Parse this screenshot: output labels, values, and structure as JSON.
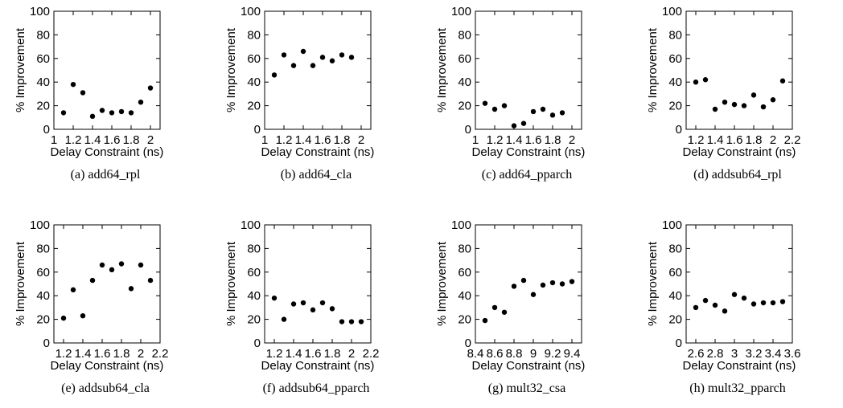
{
  "chart_data": [
    {
      "type": "scatter",
      "caption": "(a)  add64_rpl",
      "xlabel": "Delay Constraint (ns)",
      "ylabel": "% Improvement",
      "xlim": [
        1,
        2.1
      ],
      "ylim": [
        0,
        100
      ],
      "xticks": [
        1,
        1.2,
        1.4,
        1.6,
        1.8,
        2
      ],
      "yticks": [
        0,
        20,
        40,
        60,
        80,
        100
      ],
      "x": [
        1.1,
        1.2,
        1.3,
        1.4,
        1.5,
        1.6,
        1.7,
        1.8,
        1.9,
        2.0
      ],
      "y": [
        14,
        38,
        31,
        11,
        16,
        14,
        15,
        14,
        23,
        35
      ]
    },
    {
      "type": "scatter",
      "caption": "(b)  add64_cla",
      "xlabel": "Delay Constraint (ns)",
      "ylabel": "% Improvement",
      "xlim": [
        1,
        2.1
      ],
      "ylim": [
        0,
        100
      ],
      "xticks": [
        1,
        1.2,
        1.4,
        1.6,
        1.8,
        2
      ],
      "yticks": [
        0,
        20,
        40,
        60,
        80,
        100
      ],
      "x": [
        1.1,
        1.2,
        1.3,
        1.4,
        1.5,
        1.6,
        1.7,
        1.8,
        1.9
      ],
      "y": [
        46,
        63,
        54,
        66,
        54,
        61,
        58,
        63,
        61
      ]
    },
    {
      "type": "scatter",
      "caption": "(c)  add64_pparch",
      "xlabel": "Delay Constraint (ns)",
      "ylabel": "% Improvement",
      "xlim": [
        1,
        2.1
      ],
      "ylim": [
        0,
        100
      ],
      "xticks": [
        1,
        1.2,
        1.4,
        1.6,
        1.8,
        2
      ],
      "yticks": [
        0,
        20,
        40,
        60,
        80,
        100
      ],
      "x": [
        1.1,
        1.2,
        1.3,
        1.4,
        1.5,
        1.6,
        1.7,
        1.8,
        1.9
      ],
      "y": [
        22,
        17,
        20,
        3,
        5,
        15,
        17,
        12,
        14
      ]
    },
    {
      "type": "scatter",
      "caption": "(d)  addsub64_rpl",
      "xlabel": "Delay Constraint (ns)",
      "ylabel": "% Improvement",
      "xlim": [
        1.1,
        2.2
      ],
      "ylim": [
        0,
        100
      ],
      "xticks": [
        1.2,
        1.4,
        1.6,
        1.8,
        2,
        2.2
      ],
      "yticks": [
        0,
        20,
        40,
        60,
        80,
        100
      ],
      "x": [
        1.2,
        1.3,
        1.4,
        1.5,
        1.6,
        1.7,
        1.8,
        1.9,
        2.0,
        2.1
      ],
      "y": [
        40,
        42,
        17,
        23,
        21,
        20,
        29,
        19,
        25,
        41
      ]
    },
    {
      "type": "scatter",
      "caption": "(e)  addsub64_cla",
      "xlabel": "Delay Constraint (ns)",
      "ylabel": "% Improvement",
      "xlim": [
        1.1,
        2.2
      ],
      "ylim": [
        0,
        100
      ],
      "xticks": [
        1.2,
        1.4,
        1.6,
        1.8,
        2,
        2.2
      ],
      "yticks": [
        0,
        20,
        40,
        60,
        80,
        100
      ],
      "x": [
        1.2,
        1.3,
        1.4,
        1.5,
        1.6,
        1.7,
        1.8,
        1.9,
        2.0,
        2.1
      ],
      "y": [
        21,
        45,
        23,
        53,
        66,
        62,
        67,
        46,
        66,
        53
      ]
    },
    {
      "type": "scatter",
      "caption": "(f)  addsub64_pparch",
      "xlabel": "Delay Constraint (ns)",
      "ylabel": "% Improvement",
      "xlim": [
        1.1,
        2.2
      ],
      "ylim": [
        0,
        100
      ],
      "xticks": [
        1.2,
        1.4,
        1.6,
        1.8,
        2,
        2.2
      ],
      "yticks": [
        0,
        20,
        40,
        60,
        80,
        100
      ],
      "x": [
        1.2,
        1.3,
        1.4,
        1.5,
        1.6,
        1.7,
        1.8,
        1.9,
        2.0,
        2.1
      ],
      "y": [
        38,
        20,
        33,
        34,
        28,
        34,
        29,
        18,
        18,
        18
      ]
    },
    {
      "type": "scatter",
      "caption": "(g)  mult32_csa",
      "xlabel": "Delay Constraint (ns)",
      "ylabel": "% Improvement",
      "xlim": [
        8.4,
        9.5
      ],
      "ylim": [
        0,
        100
      ],
      "xticks": [
        8.4,
        8.6,
        8.8,
        9,
        9.2,
        9.4
      ],
      "yticks": [
        0,
        20,
        40,
        60,
        80,
        100
      ],
      "x": [
        8.5,
        8.6,
        8.7,
        8.8,
        8.9,
        9.0,
        9.1,
        9.2,
        9.3,
        9.4
      ],
      "y": [
        19,
        30,
        26,
        48,
        53,
        41,
        49,
        51,
        50,
        52
      ]
    },
    {
      "type": "scatter",
      "caption": "(h)  mult32_pparch",
      "xlabel": "Delay Constraint (ns)",
      "ylabel": "% Improvement",
      "xlim": [
        2.5,
        3.6
      ],
      "ylim": [
        0,
        100
      ],
      "xticks": [
        2.6,
        2.8,
        3,
        3.2,
        3.4,
        3.6
      ],
      "yticks": [
        0,
        20,
        40,
        60,
        80,
        100
      ],
      "x": [
        2.6,
        2.7,
        2.8,
        2.9,
        3.0,
        3.1,
        3.2,
        3.3,
        3.4,
        3.5
      ],
      "y": [
        30,
        36,
        32,
        27,
        41,
        38,
        33,
        34,
        34,
        35
      ]
    }
  ]
}
